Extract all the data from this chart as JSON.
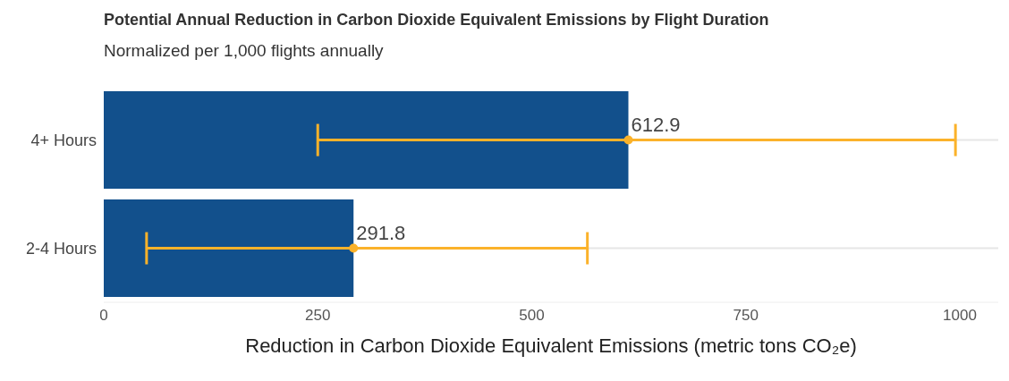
{
  "chart_data": {
    "type": "bar",
    "orientation": "horizontal",
    "title": "Potential Annual Reduction in Carbon Dioxide Equivalent Emissions by Flight Duration",
    "subtitle": "Normalized per 1,000 flights annually",
    "xlabel": "Reduction in Carbon Dioxide Equivalent Emissions (metric tons CO₂e)",
    "categories": [
      "4+ Hours",
      "2-4 Hours"
    ],
    "series": [
      {
        "color": "#12508c",
        "values": [
          612.9,
          291.8
        ],
        "errors": [
          [
            250,
            995
          ],
          [
            50,
            565
          ]
        ]
      },
      {
        "type": "scatter",
        "color": "#fbb22a",
        "x": [
          "4+ Hours",
          "2-4 Hours"
        ],
        "values": [
          612.9,
          291.8
        ],
        "value_labels": [
          "612.9",
          "291.8"
        ]
      }
    ],
    "xlim": [
      0,
      1045
    ],
    "xticks": [
      0,
      250,
      500,
      750,
      1000
    ],
    "grid": "y"
  }
}
